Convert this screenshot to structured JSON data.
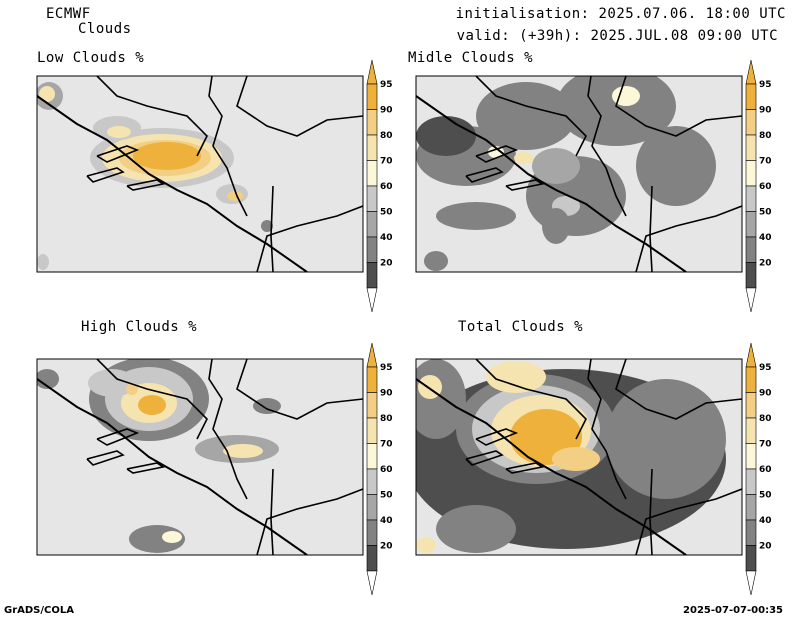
{
  "header": {
    "model": "ECMWF",
    "field": "Clouds",
    "init": "initialisation: 2025.07.06. 18:00 UTC",
    "valid": "valid: (+39h): 2025.JUL.08 09:00 UTC"
  },
  "panels": [
    {
      "id": "low",
      "title": "Low Clouds %"
    },
    {
      "id": "mid",
      "title": "Midle Clouds %"
    },
    {
      "id": "high",
      "title": "High Clouds %"
    },
    {
      "id": "total",
      "title": "Total Clouds %"
    }
  ],
  "colorbar": {
    "labels": [
      "95",
      "90",
      "80",
      "70",
      "60",
      "50",
      "40",
      "20"
    ],
    "colors": {
      "c95": "#eeb13c",
      "c90": "#f2cf84",
      "c80": "#f6e4b0",
      "c70": "#fbf7d8",
      "c60": "#c8c8c8",
      "c50": "#a6a6a6",
      "c40": "#828282",
      "c20": "#4e4e4e",
      "below": "#ffffff",
      "background": "#e6e6e6"
    }
  },
  "footer": {
    "left": "GrADS/COLA",
    "right": "2025-07-07-00:35"
  }
}
